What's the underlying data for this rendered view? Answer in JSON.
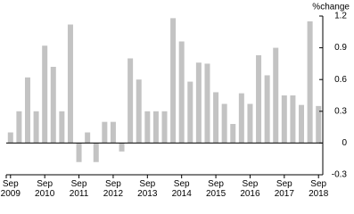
{
  "chart_data": {
    "type": "bar",
    "y_label": "%change",
    "categories": [
      "Sep 2009",
      null,
      null,
      null,
      "Sep 2010",
      null,
      null,
      null,
      "Sep 2011",
      null,
      null,
      null,
      "Sep 2012",
      null,
      null,
      null,
      "Sep 2013",
      null,
      null,
      null,
      "Sep 2014",
      null,
      null,
      null,
      "Sep 2015",
      null,
      null,
      null,
      "Sep 2016",
      null,
      null,
      null,
      "Sep 2017",
      null,
      null,
      null,
      "Sep 2018"
    ],
    "values": [
      0.1,
      0.3,
      0.62,
      0.3,
      0.92,
      0.72,
      0.3,
      1.12,
      -0.18,
      0.1,
      -0.18,
      0.2,
      0.2,
      -0.08,
      0.8,
      0.6,
      0.3,
      0.3,
      0.3,
      1.18,
      0.96,
      0.58,
      0.76,
      0.75,
      0.48,
      0.37,
      0.18,
      0.47,
      0.37,
      0.83,
      0.64,
      0.9,
      0.45,
      0.45,
      0.36,
      1.15,
      0.35
    ],
    "color": "#c3c3c3",
    "ylim": [
      -0.3,
      1.2
    ],
    "yticks": [
      1.2,
      0.9,
      0.6,
      0.3,
      0,
      -0.3
    ]
  }
}
